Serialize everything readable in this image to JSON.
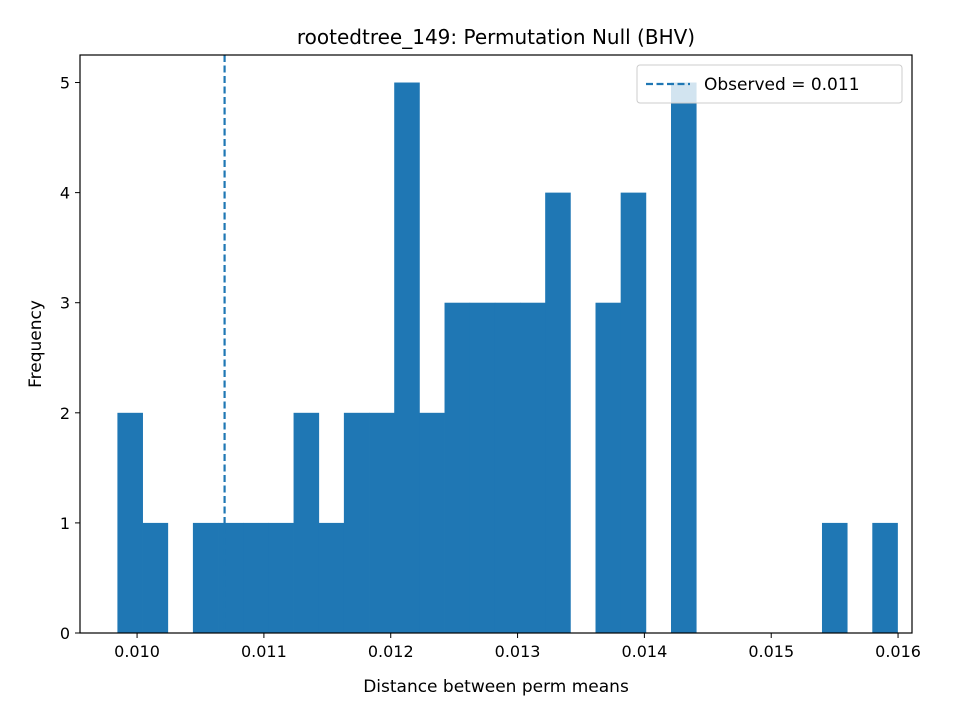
{
  "chart_data": {
    "type": "bar",
    "title": "rootedtree_149: Permutation Null (BHV)",
    "xlabel": "Distance between perm means",
    "ylabel": "Frequency",
    "xlim": [
      0.00955,
      0.01611
    ],
    "ylim": [
      0,
      5.25
    ],
    "xticks": [
      0.01,
      0.011,
      0.012,
      0.013,
      0.014,
      0.015,
      0.016
    ],
    "xtick_labels": [
      "0.010",
      "0.011",
      "0.012",
      "0.013",
      "0.014",
      "0.015",
      "0.016"
    ],
    "yticks": [
      0,
      1,
      2,
      3,
      4,
      5
    ],
    "ytick_labels": [
      "0",
      "1",
      "2",
      "3",
      "4",
      "5"
    ],
    "bin_start": 0.009845,
    "bin_width": 0.0001984,
    "counts": [
      2,
      1,
      0,
      1,
      1,
      1,
      1,
      2,
      1,
      2,
      2,
      5,
      2,
      3,
      3,
      3,
      3,
      4,
      0,
      3,
      4,
      0,
      5,
      0,
      0,
      0,
      0,
      0,
      1,
      0,
      1
    ],
    "bar_color": "#1f77b4",
    "observed": {
      "value": 0.01069,
      "label": "Observed = 0.011",
      "color": "#1f77b4",
      "style": "dashed"
    },
    "legend": {
      "placement": "upper right",
      "entries": [
        "Observed = 0.011"
      ]
    },
    "grid": false
  }
}
